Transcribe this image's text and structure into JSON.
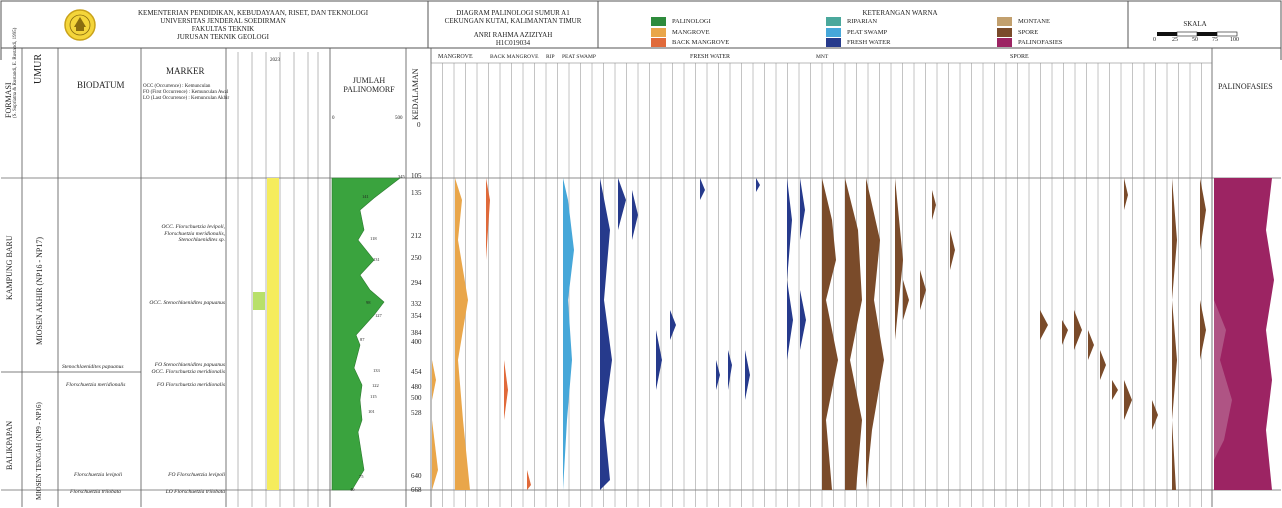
{
  "header": {
    "ministry_lines": [
      "KEMENTERIAN PENDIDIKAN, KEBUDAYAAN, RISET, DAN TEKNOLOGI",
      "UNIVERSITAS JENDERAL SOEDIRMAN",
      "FAKULTAS TEKNIK",
      "JURUSAN TEKNIK GEOLOGI"
    ],
    "diagram_lines": [
      "DIAGRAM PALINOLOGI SUMUR A1",
      "CEKUNGAN KUTAI, KALIMANTAN TIMUR"
    ],
    "author": "ANRI RAHMA AZIZIYAH",
    "nim": "H1C019034",
    "legend_title": "KETERANGAN WARNA",
    "scale_title": "SKALA",
    "scale_ticks": [
      "0",
      "25",
      "50",
      "75",
      "100"
    ]
  },
  "legend": [
    {
      "label": "PALINOLOGI",
      "color": "#2e8b3c"
    },
    {
      "label": "MANGROVE",
      "color": "#e9a64a"
    },
    {
      "label": "BACK MANGROVE",
      "color": "#e06a3a"
    },
    {
      "label": "RIPARIAN",
      "color": "#4aa89c"
    },
    {
      "label": "PEAT SWAMP",
      "color": "#46a7d9"
    },
    {
      "label": "FRESH WATER",
      "color": "#263a8c"
    },
    {
      "label": "MONTANE",
      "color": "#c2a06e"
    },
    {
      "label": "SPORE",
      "color": "#7a4b2a"
    },
    {
      "label": "PALINOFASIES",
      "color": "#9c2463"
    }
  ],
  "columns": {
    "formasi": "FORMASI",
    "formasi_sub": "(S. Supriatna & Rustandi, E. Rustandi, 1995)",
    "umur": "UMUR",
    "biodatum": "BIODATUM",
    "marker": "MARKER",
    "marker_notes": [
      "OCC (Occurrence) : Kemunculan",
      "FO (First Occurrence) : Kemunculan Awal",
      "LO (Last Occurrence) : Kemunculan Akhir"
    ],
    "jumlah": "JUMLAH PALINOMORF",
    "jumlah_axis": [
      "0",
      "500"
    ],
    "kedalaman": "KEDALAMAN",
    "palinofasies": "PALINOFASIES",
    "paleo_year": "2023"
  },
  "formations": [
    "KAMPUNG BARU",
    "BALIKPAPAN"
  ],
  "ages": [
    "MIOSEN AKHIR (NP16 - NP17)",
    "MIOSEN TENGAH (NP9 - NP16)"
  ],
  "biodatum_entries": [
    "Stenochlaenidites papuanus",
    "Florschuetzia meridionalis",
    "Florschuetzia levipoli",
    "Florschuetzia trilobata"
  ],
  "marker_entries": [
    "OCC. Florschuetzia levipoli, Florschuetzia meridionalis, Stenochlaenidites sp.",
    "OCC. Stenochlaenidites papuanus",
    "FO Stenochlaenidites papuanus",
    "OCC. Florschuetzia meridionalis",
    "FO Florschuetzia meridionalis",
    "FO Florschuetzia levipoli",
    "LO Florschuetzia trilobata"
  ],
  "groups": [
    "MANGROVE",
    "BACK MANGROVE",
    "RIP",
    "PEAT SWAMP",
    "FRESH WATER",
    "MNT",
    "SPORE"
  ],
  "depths": [
    "0",
    "105",
    "135",
    "212",
    "250",
    "294",
    "332",
    "354",
    "384",
    "400",
    "454",
    "480",
    "500",
    "528",
    "640",
    "668"
  ],
  "jumlah_labels": [
    "345",
    "141",
    "118",
    "131",
    "98",
    "127",
    "87",
    "133",
    "122",
    "115",
    "101",
    "75",
    "40"
  ]
}
